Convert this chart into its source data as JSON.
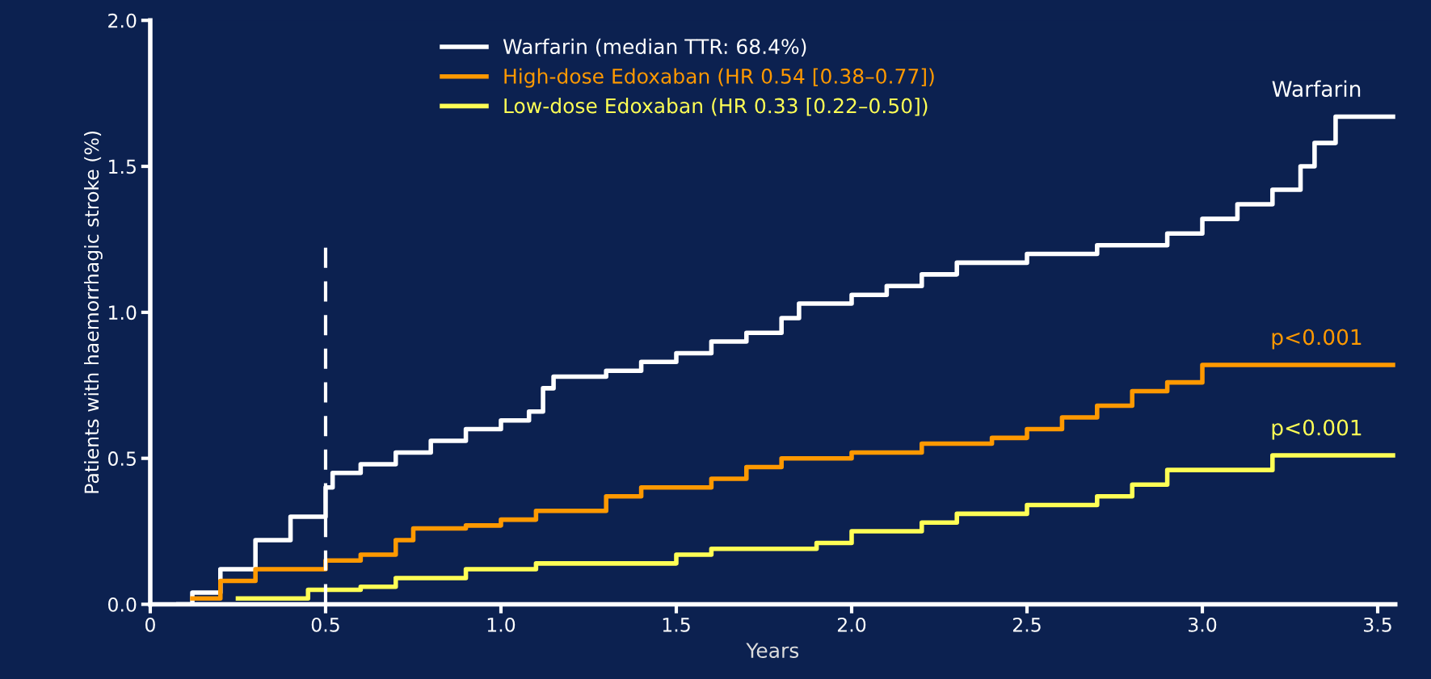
{
  "chart_data": {
    "type": "step",
    "xlabel": "Years",
    "ylabel": "Patients with haemorrhagic stroke (%)",
    "xlim": [
      0,
      3.55
    ],
    "ylim": [
      0,
      2.0
    ],
    "xticks": [
      {
        "value": 0,
        "label": "0"
      },
      0.5,
      {
        "value": 1,
        "label": "1.0"
      },
      1.5,
      {
        "value": 2,
        "label": "2.0"
      },
      2.5,
      {
        "value": 3,
        "label": "3.0"
      },
      3.5
    ],
    "yticks": [
      {
        "value": 0,
        "label": "0.0"
      },
      0.5,
      {
        "value": 1,
        "label": "1.0"
      },
      1.5,
      {
        "value": 2,
        "label": "2.0"
      }
    ],
    "grid": false,
    "legend": "top left",
    "marker": "none",
    "line_style": "solid",
    "series": [
      {
        "name": "Warfarin (median TTR: 68.4%)",
        "color": "#ffffff",
        "x": [
          0.08,
          0.12,
          0.2,
          0.3,
          0.4,
          0.5,
          0.52,
          0.6,
          0.7,
          0.8,
          0.9,
          1.0,
          1.08,
          1.12,
          1.15,
          1.3,
          1.4,
          1.5,
          1.6,
          1.7,
          1.8,
          1.85,
          2.0,
          2.1,
          2.2,
          2.3,
          2.5,
          2.7,
          2.9,
          3.0,
          3.1,
          3.2,
          3.28,
          3.32,
          3.38,
          3.55
        ],
        "values": [
          0,
          0.04,
          0.12,
          0.22,
          0.3,
          0.4,
          0.45,
          0.48,
          0.52,
          0.56,
          0.6,
          0.63,
          0.66,
          0.74,
          0.78,
          0.8,
          0.83,
          0.86,
          0.9,
          0.93,
          0.98,
          1.03,
          1.06,
          1.09,
          1.13,
          1.17,
          1.2,
          1.23,
          1.27,
          1.32,
          1.37,
          1.42,
          1.5,
          1.58,
          1.67,
          1.67
        ]
      },
      {
        "name": "High-dose Edoxaban (HR 0.54 [0.38–0.77])",
        "color": "#ff9900",
        "x": [
          0.12,
          0.2,
          0.3,
          0.5,
          0.6,
          0.7,
          0.75,
          0.9,
          1.0,
          1.1,
          1.3,
          1.4,
          1.6,
          1.7,
          1.8,
          2.0,
          2.2,
          2.4,
          2.5,
          2.6,
          2.7,
          2.8,
          2.9,
          3.0,
          3.55
        ],
        "values": [
          0.02,
          0.08,
          0.12,
          0.15,
          0.17,
          0.22,
          0.26,
          0.27,
          0.29,
          0.32,
          0.37,
          0.4,
          0.43,
          0.47,
          0.5,
          0.52,
          0.55,
          0.57,
          0.6,
          0.64,
          0.68,
          0.73,
          0.76,
          0.82,
          0.82
        ]
      },
      {
        "name": "Low-dose Edoxaban (HR 0.33 [0.22–0.50])",
        "color": "#ffff55",
        "x": [
          0.25,
          0.45,
          0.6,
          0.7,
          0.9,
          1.1,
          1.5,
          1.6,
          1.9,
          2.0,
          2.2,
          2.3,
          2.5,
          2.7,
          2.8,
          2.9,
          3.2,
          3.55
        ],
        "values": [
          0.02,
          0.05,
          0.06,
          0.09,
          0.12,
          0.14,
          0.17,
          0.19,
          0.21,
          0.25,
          0.28,
          0.31,
          0.34,
          0.37,
          0.41,
          0.46,
          0.51,
          0.51
        ]
      }
    ],
    "ref_lines": [
      {
        "axis": "x",
        "value": 0.5,
        "color": "#ffffff",
        "line_style": "dashed"
      }
    ],
    "annotations": [
      "Warfarin",
      "p<0.001",
      "p<0.001"
    ]
  }
}
